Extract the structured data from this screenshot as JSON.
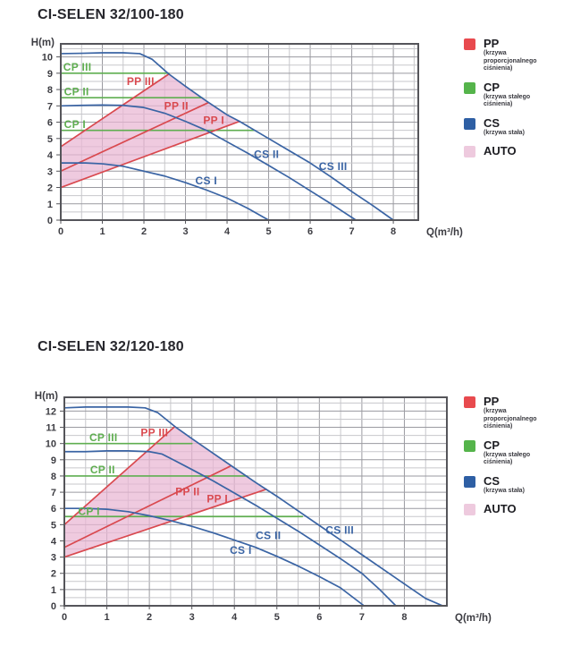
{
  "colors": {
    "pp": "#d9494f",
    "cp": "#5fae50",
    "cs": "#3a64a4",
    "auto_fill": "#e9b6d2",
    "legend_pp": "#e84a4e",
    "legend_cp": "#55b44b",
    "legend_cs": "#2e5fa4",
    "legend_auto": "#eecade",
    "grid_minor": "#c7c7cb",
    "grid_major": "#9a9aa0",
    "frame": "#55555a",
    "text": "#3c3c42"
  },
  "legend": {
    "items": [
      {
        "key": "pp",
        "label": "PP",
        "sub": "(krzywa proporcjonalnego ciśnienia)",
        "color_key": "legend_pp"
      },
      {
        "key": "cp",
        "label": "CP",
        "sub": "(krzywa stałego ciśnienia)",
        "color_key": "legend_cp"
      },
      {
        "key": "cs",
        "label": "CS",
        "sub": "(krzywa stała)",
        "color_key": "legend_cs"
      },
      {
        "key": "auto",
        "label": "AUTO",
        "sub": "",
        "color_key": "legend_auto"
      }
    ]
  },
  "chart_data": [
    {
      "type": "line",
      "title": "CI-SELEN 32/100-180",
      "xlabel": "Q(m³/h)",
      "ylabel": "H(m)",
      "xlim": [
        0,
        8.6
      ],
      "ylim": [
        0,
        10.8
      ],
      "xticks": [
        0,
        1,
        2,
        3,
        4,
        5,
        6,
        7,
        8
      ],
      "yticks": [
        0,
        1,
        2,
        3,
        4,
        5,
        6,
        7,
        8,
        9,
        10
      ],
      "minor_step": 0.5,
      "grid": true,
      "legend_position": "right",
      "auto_region": [
        [
          0,
          2
        ],
        [
          0,
          4.5
        ],
        [
          2.6,
          8.95
        ],
        [
          3,
          8.2
        ],
        [
          3.5,
          7.3
        ],
        [
          4,
          6.45
        ],
        [
          4.3,
          6.05
        ]
      ],
      "series": [
        {
          "name": "CP I",
          "color_key": "cp",
          "points": [
            [
              0,
              5.5
            ],
            [
              4.65,
              5.5
            ]
          ]
        },
        {
          "name": "CP II",
          "color_key": "cp",
          "points": [
            [
              0,
              7.5
            ],
            [
              3.4,
              7.5
            ]
          ]
        },
        {
          "name": "CP III",
          "color_key": "cp",
          "points": [
            [
              0,
              9.0
            ],
            [
              2.6,
              9.0
            ]
          ]
        },
        {
          "name": "PP I",
          "color_key": "pp",
          "points": [
            [
              0,
              2.0
            ],
            [
              4.3,
              6.05
            ]
          ]
        },
        {
          "name": "PP II",
          "color_key": "pp",
          "points": [
            [
              0,
              3.0
            ],
            [
              3.55,
              7.2
            ]
          ]
        },
        {
          "name": "PP III",
          "color_key": "pp",
          "points": [
            [
              0,
              4.5
            ],
            [
              2.6,
              8.95
            ]
          ]
        },
        {
          "name": "CS I",
          "color_key": "cs",
          "points": [
            [
              0,
              3.5
            ],
            [
              0.6,
              3.5
            ],
            [
              1,
              3.45
            ],
            [
              1.5,
              3.3
            ],
            [
              2,
              3.0
            ],
            [
              2.5,
              2.7
            ],
            [
              3,
              2.3
            ],
            [
              3.5,
              1.85
            ],
            [
              4,
              1.35
            ],
            [
              4.5,
              0.72
            ],
            [
              5,
              0
            ]
          ]
        },
        {
          "name": "CS II",
          "color_key": "cs",
          "points": [
            [
              0,
              7.0
            ],
            [
              0.5,
              7.03
            ],
            [
              1,
              7.05
            ],
            [
              1.5,
              7.03
            ],
            [
              2,
              6.9
            ],
            [
              2.5,
              6.55
            ],
            [
              3,
              6.05
            ],
            [
              3.5,
              5.5
            ],
            [
              4,
              4.8
            ],
            [
              4.5,
              4.1
            ],
            [
              5,
              3.35
            ],
            [
              5.5,
              2.6
            ],
            [
              6,
              1.8
            ],
            [
              6.5,
              1.0
            ],
            [
              7.1,
              0
            ]
          ]
        },
        {
          "name": "CS III",
          "color_key": "cs",
          "points": [
            [
              0,
              10.2
            ],
            [
              0.5,
              10.22
            ],
            [
              1,
              10.25
            ],
            [
              1.5,
              10.25
            ],
            [
              1.9,
              10.2
            ],
            [
              2.2,
              9.85
            ],
            [
              2.6,
              8.95
            ],
            [
              3,
              8.2
            ],
            [
              3.5,
              7.3
            ],
            [
              4,
              6.45
            ],
            [
              4.3,
              6.05
            ],
            [
              5,
              5.0
            ],
            [
              5.5,
              4.25
            ],
            [
              6,
              3.5
            ],
            [
              6.5,
              2.65
            ],
            [
              7,
              1.75
            ],
            [
              7.5,
              0.9
            ],
            [
              8,
              0
            ]
          ]
        }
      ],
      "labels": [
        {
          "text": "CP III",
          "x": 0.4,
          "y": 9.15,
          "color_key": "cp"
        },
        {
          "text": "CP II",
          "x": 0.38,
          "y": 7.65,
          "color_key": "cp"
        },
        {
          "text": "CP I",
          "x": 0.34,
          "y": 5.65,
          "color_key": "cp"
        },
        {
          "text": "PP III",
          "x": 1.92,
          "y": 8.28,
          "color_key": "pp"
        },
        {
          "text": "PP II",
          "x": 2.78,
          "y": 6.78,
          "color_key": "pp"
        },
        {
          "text": "PP I",
          "x": 3.68,
          "y": 5.88,
          "color_key": "pp"
        },
        {
          "text": "CS I",
          "x": 3.5,
          "y": 2.18,
          "color_key": "cs"
        },
        {
          "text": "CS II",
          "x": 4.95,
          "y": 3.82,
          "color_key": "cs"
        },
        {
          "text": "CS III",
          "x": 6.55,
          "y": 3.08,
          "color_key": "cs"
        }
      ]
    },
    {
      "type": "line",
      "title": "CI-SELEN 32/120-180",
      "xlabel": "Q(m³/h)",
      "ylabel": "H(m)",
      "xlim": [
        0,
        9.0
      ],
      "ylim": [
        0,
        12.85
      ],
      "xticks": [
        0,
        1,
        2,
        3,
        4,
        5,
        6,
        7,
        8
      ],
      "yticks": [
        0,
        1,
        2,
        3,
        4,
        5,
        6,
        7,
        8,
        9,
        10,
        11,
        12
      ],
      "minor_step": 0.5,
      "grid": true,
      "legend_position": "right",
      "auto_region": [
        [
          0,
          3
        ],
        [
          0,
          5
        ],
        [
          2.6,
          11.05
        ],
        [
          3,
          10.3
        ],
        [
          3.5,
          9.4
        ],
        [
          4,
          8.5
        ],
        [
          4.5,
          7.6
        ],
        [
          4.75,
          7.18
        ]
      ],
      "series": [
        {
          "name": "CP I",
          "color_key": "cp",
          "points": [
            [
              0,
              5.5
            ],
            [
              5.6,
              5.5
            ]
          ]
        },
        {
          "name": "CP II",
          "color_key": "cp",
          "points": [
            [
              0,
              8.0
            ],
            [
              4.3,
              8.0
            ]
          ]
        },
        {
          "name": "CP III",
          "color_key": "cp",
          "points": [
            [
              0,
              10.0
            ],
            [
              3.0,
              10.0
            ]
          ]
        },
        {
          "name": "PP I",
          "color_key": "pp",
          "points": [
            [
              0,
              3.0
            ],
            [
              4.75,
              7.18
            ]
          ]
        },
        {
          "name": "PP II",
          "color_key": "pp",
          "points": [
            [
              0,
              3.6
            ],
            [
              3.9,
              8.6
            ]
          ]
        },
        {
          "name": "PP III",
          "color_key": "pp",
          "points": [
            [
              0,
              5.0
            ],
            [
              2.6,
              11.05
            ]
          ]
        },
        {
          "name": "CS I",
          "color_key": "cs",
          "points": [
            [
              0,
              6.0
            ],
            [
              0.5,
              6.0
            ],
            [
              1,
              5.95
            ],
            [
              1.5,
              5.8
            ],
            [
              2,
              5.55
            ],
            [
              2.5,
              5.25
            ],
            [
              3,
              4.9
            ],
            [
              3.5,
              4.5
            ],
            [
              4,
              4.05
            ],
            [
              4.5,
              3.6
            ],
            [
              5,
              3.05
            ],
            [
              5.5,
              2.45
            ],
            [
              6,
              1.8
            ],
            [
              6.5,
              1.1
            ],
            [
              7.05,
              0
            ]
          ]
        },
        {
          "name": "CS II",
          "color_key": "cs",
          "points": [
            [
              0,
              9.5
            ],
            [
              0.5,
              9.5
            ],
            [
              1,
              9.55
            ],
            [
              1.5,
              9.55
            ],
            [
              2,
              9.5
            ],
            [
              2.3,
              9.35
            ],
            [
              2.6,
              8.95
            ],
            [
              3,
              8.4
            ],
            [
              3.5,
              7.7
            ],
            [
              4,
              6.95
            ],
            [
              4.5,
              6.2
            ],
            [
              5,
              5.4
            ],
            [
              5.5,
              4.6
            ],
            [
              6,
              3.75
            ],
            [
              6.5,
              2.9
            ],
            [
              7,
              2.0
            ],
            [
              7.4,
              1.05
            ],
            [
              7.8,
              0
            ]
          ]
        },
        {
          "name": "CS III",
          "color_key": "cs",
          "points": [
            [
              0,
              12.2
            ],
            [
              0.5,
              12.25
            ],
            [
              1,
              12.25
            ],
            [
              1.5,
              12.25
            ],
            [
              1.9,
              12.2
            ],
            [
              2.2,
              11.9
            ],
            [
              2.6,
              11.05
            ],
            [
              3,
              10.3
            ],
            [
              3.5,
              9.4
            ],
            [
              4,
              8.5
            ],
            [
              4.5,
              7.6
            ],
            [
              5,
              6.75
            ],
            [
              5.5,
              5.85
            ],
            [
              6,
              4.95
            ],
            [
              6.5,
              4.05
            ],
            [
              7,
              3.15
            ],
            [
              7.5,
              2.25
            ],
            [
              8,
              1.35
            ],
            [
              8.5,
              0.45
            ],
            [
              8.9,
              0
            ]
          ]
        }
      ],
      "labels": [
        {
          "text": "CP III",
          "x": 0.92,
          "y": 10.15,
          "color_key": "cp"
        },
        {
          "text": "CP II",
          "x": 0.9,
          "y": 8.15,
          "color_key": "cp"
        },
        {
          "text": "CP I",
          "x": 0.58,
          "y": 5.6,
          "color_key": "cp"
        },
        {
          "text": "PP III",
          "x": 2.12,
          "y": 10.45,
          "color_key": "pp"
        },
        {
          "text": "PP II",
          "x": 2.9,
          "y": 6.82,
          "color_key": "pp"
        },
        {
          "text": "PP I",
          "x": 3.6,
          "y": 6.38,
          "color_key": "pp"
        },
        {
          "text": "CS I",
          "x": 4.15,
          "y": 3.2,
          "color_key": "cs"
        },
        {
          "text": "CS II",
          "x": 4.8,
          "y": 4.12,
          "color_key": "cs"
        },
        {
          "text": "CS III",
          "x": 6.48,
          "y": 4.45,
          "color_key": "cs"
        }
      ]
    }
  ]
}
